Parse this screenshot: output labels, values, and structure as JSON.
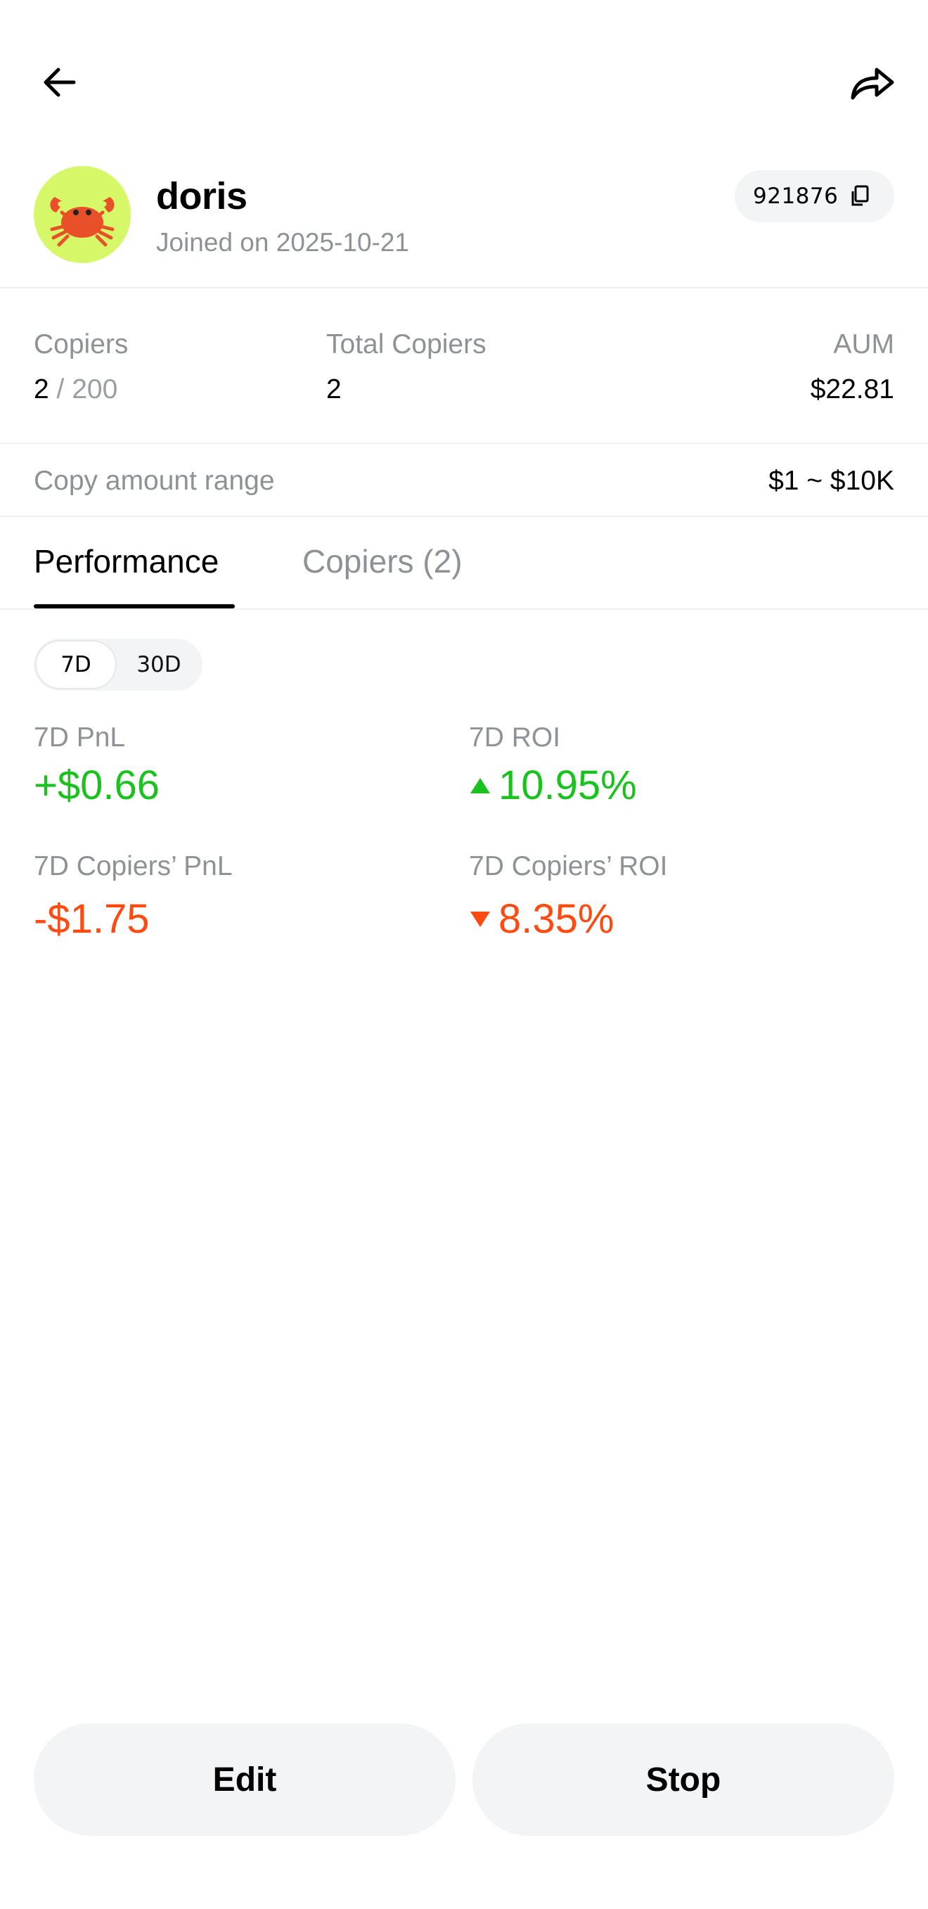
{
  "profile": {
    "name": "doris",
    "joined": "Joined on 2025-10-21",
    "uid": "921876",
    "avatar_icon": "crab-emoji",
    "avatar_bg": "#d6f767"
  },
  "stats": {
    "copiers_label": "Copiers",
    "copiers_value": "2",
    "copiers_max": " / 200",
    "total_copiers_label": "Total Copiers",
    "total_copiers_value": "2",
    "aum_label": "AUM",
    "aum_value": "$22.81"
  },
  "copy_range": {
    "label": "Copy amount range",
    "value": "$1 ~ $10K"
  },
  "tabs": [
    {
      "label": "Performance",
      "active": true
    },
    {
      "label": "Copiers (2)",
      "active": false
    }
  ],
  "period": {
    "options": [
      "7D",
      "30D"
    ],
    "selected": "7D"
  },
  "metrics": {
    "pnl_label": "7D PnL",
    "pnl_value": "+$0.66",
    "roi_label": "7D ROI",
    "roi_value": "10.95%",
    "copiers_pnl_label": "7D Copiers’ PnL",
    "copiers_pnl_value": "-$1.75",
    "copiers_roi_label": "7D Copiers’ ROI",
    "copiers_roi_value": "8.35%"
  },
  "colors": {
    "positive": "#19c21d",
    "negative": "#ff4a12"
  },
  "actions": {
    "edit_label": "Edit",
    "stop_label": "Stop"
  }
}
